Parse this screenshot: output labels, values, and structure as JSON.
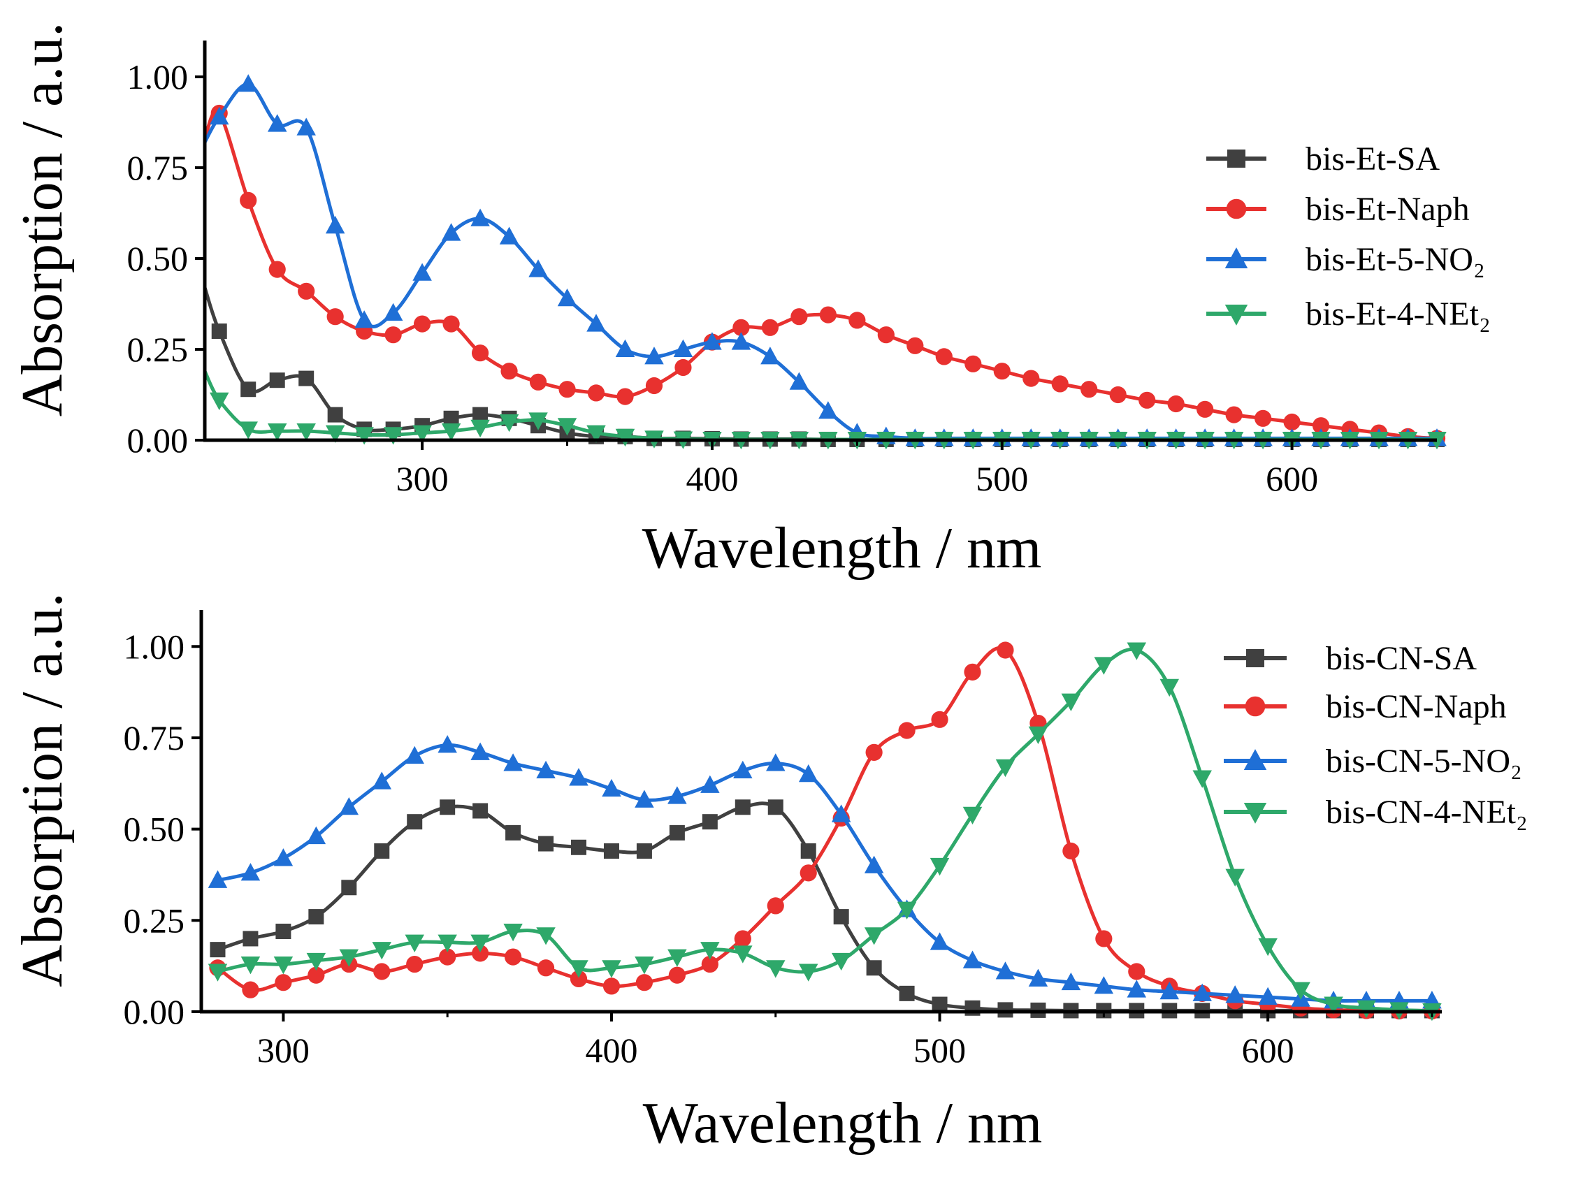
{
  "chart_data": [
    {
      "type": "line",
      "title": "",
      "xlabel": "Wavelength / nm",
      "ylabel": "Absorption / a.u.",
      "xlim": [
        225,
        650
      ],
      "ylim": [
        0,
        1.1
      ],
      "xticks": [
        300,
        400,
        500,
        600
      ],
      "yticks": [
        "0.00",
        "0.25",
        "0.50",
        "0.75",
        "1.00"
      ],
      "legend_position": "right",
      "grid": false,
      "series": [
        {
          "name": "bis-Et-SA",
          "color": "#404040",
          "marker": "square",
          "x": [
            225,
            230,
            240,
            250,
            260,
            270,
            280,
            290,
            300,
            310,
            320,
            330,
            340,
            350,
            360,
            370,
            380,
            390,
            400,
            410,
            420,
            430,
            440,
            450,
            460,
            470,
            480,
            490,
            500,
            510,
            520,
            530,
            540,
            550,
            560,
            570,
            580,
            590,
            600,
            610,
            620,
            630,
            640,
            650
          ],
          "y": [
            0.42,
            0.3,
            0.14,
            0.165,
            0.17,
            0.07,
            0.03,
            0.03,
            0.04,
            0.06,
            0.07,
            0.06,
            0.04,
            0.02,
            0.01,
            0.01,
            0.005,
            0.005,
            0.004,
            0.003,
            0.003,
            0.003,
            0.002,
            0.002,
            0.002,
            0.002,
            0.002,
            0.002,
            0.002,
            0.002,
            0.002,
            0.002,
            0.002,
            0.002,
            0.002,
            0.002,
            0.002,
            0.002,
            0.002,
            0.002,
            0.002,
            0.002,
            0.002,
            0.002
          ]
        },
        {
          "name": "bis-Et-Naph",
          "color": "#e8312f",
          "marker": "circle",
          "x": [
            225,
            230,
            240,
            250,
            260,
            270,
            280,
            290,
            300,
            310,
            320,
            330,
            340,
            350,
            360,
            370,
            380,
            390,
            400,
            410,
            420,
            430,
            440,
            450,
            460,
            470,
            480,
            490,
            500,
            510,
            520,
            530,
            540,
            550,
            560,
            570,
            580,
            590,
            600,
            610,
            620,
            630,
            640,
            650
          ],
          "y": [
            0.83,
            0.9,
            0.66,
            0.47,
            0.41,
            0.34,
            0.3,
            0.29,
            0.32,
            0.32,
            0.24,
            0.19,
            0.16,
            0.14,
            0.13,
            0.12,
            0.15,
            0.2,
            0.27,
            0.31,
            0.31,
            0.34,
            0.345,
            0.33,
            0.29,
            0.26,
            0.23,
            0.21,
            0.19,
            0.17,
            0.155,
            0.14,
            0.125,
            0.11,
            0.1,
            0.085,
            0.07,
            0.06,
            0.05,
            0.04,
            0.03,
            0.02,
            0.01,
            0.005
          ]
        },
        {
          "name": "bis-Et-5-NO₂",
          "color": "#1f6fd6",
          "marker": "triangle-up",
          "x": [
            225,
            230,
            240,
            250,
            260,
            270,
            280,
            290,
            300,
            310,
            320,
            330,
            340,
            350,
            360,
            370,
            380,
            390,
            400,
            410,
            420,
            430,
            440,
            450,
            460,
            470,
            480,
            490,
            500,
            510,
            520,
            530,
            540,
            550,
            560,
            570,
            580,
            590,
            600,
            610,
            620,
            630,
            640,
            650
          ],
          "y": [
            0.82,
            0.89,
            0.98,
            0.87,
            0.86,
            0.59,
            0.33,
            0.35,
            0.46,
            0.57,
            0.61,
            0.56,
            0.47,
            0.39,
            0.32,
            0.25,
            0.23,
            0.25,
            0.27,
            0.27,
            0.23,
            0.16,
            0.08,
            0.02,
            0.01,
            0.005,
            0.005,
            0.005,
            0.005,
            0.005,
            0.005,
            0.005,
            0.005,
            0.005,
            0.005,
            0.005,
            0.005,
            0.005,
            0.005,
            0.005,
            0.005,
            0.005,
            0.005,
            0.005
          ]
        },
        {
          "name": "bis-Et-4-NEt₂",
          "color": "#2ea86a",
          "marker": "triangle-down",
          "x": [
            225,
            230,
            240,
            250,
            260,
            270,
            280,
            290,
            300,
            310,
            320,
            330,
            340,
            350,
            360,
            370,
            380,
            390,
            400,
            410,
            420,
            430,
            440,
            450,
            460,
            470,
            480,
            490,
            500,
            510,
            520,
            530,
            540,
            550,
            560,
            570,
            580,
            590,
            600,
            610,
            620,
            630,
            640,
            650
          ],
          "y": [
            0.19,
            0.11,
            0.03,
            0.025,
            0.025,
            0.02,
            0.015,
            0.015,
            0.02,
            0.025,
            0.035,
            0.05,
            0.055,
            0.04,
            0.02,
            0.01,
            0.005,
            0.003,
            0.002,
            0.002,
            0.002,
            0.002,
            0.002,
            0.002,
            0.002,
            0.002,
            0.002,
            0.002,
            0.002,
            0.002,
            0.002,
            0.002,
            0.002,
            0.002,
            0.002,
            0.002,
            0.002,
            0.002,
            0.002,
            0.002,
            0.002,
            0.002,
            0.002,
            0.002
          ]
        }
      ]
    },
    {
      "type": "line",
      "title": "",
      "xlabel": "Wavelength / nm",
      "ylabel": "Absorption / a.u.",
      "xlim": [
        275,
        653
      ],
      "ylim": [
        0,
        1.1
      ],
      "xticks": [
        300,
        400,
        500,
        600
      ],
      "yticks": [
        "0.00",
        "0.25",
        "0.50",
        "0.75",
        "1.00"
      ],
      "legend_position": "right",
      "grid": false,
      "series": [
        {
          "name": "bis-CN-SA",
          "color": "#404040",
          "marker": "square",
          "x": [
            280,
            290,
            300,
            310,
            320,
            330,
            340,
            350,
            360,
            370,
            380,
            390,
            400,
            410,
            420,
            430,
            440,
            450,
            460,
            470,
            480,
            490,
            500,
            510,
            520,
            530,
            540,
            550,
            560,
            570,
            580,
            590,
            600,
            610,
            620,
            630,
            640,
            650
          ],
          "y": [
            0.17,
            0.2,
            0.22,
            0.26,
            0.34,
            0.44,
            0.52,
            0.56,
            0.55,
            0.49,
            0.46,
            0.45,
            0.44,
            0.44,
            0.49,
            0.52,
            0.56,
            0.56,
            0.44,
            0.26,
            0.12,
            0.05,
            0.02,
            0.01,
            0.005,
            0.004,
            0.003,
            0.003,
            0.003,
            0.003,
            0.003,
            0.003,
            0.003,
            0.003,
            0.003,
            0.003,
            0.003,
            0.003
          ]
        },
        {
          "name": "bis-CN-Naph",
          "color": "#e8312f",
          "marker": "circle",
          "x": [
            280,
            290,
            300,
            310,
            320,
            330,
            340,
            350,
            360,
            370,
            380,
            390,
            400,
            410,
            420,
            430,
            440,
            450,
            460,
            470,
            480,
            490,
            500,
            510,
            520,
            530,
            540,
            550,
            560,
            570,
            580,
            590,
            600,
            610,
            620,
            630,
            640,
            650
          ],
          "y": [
            0.12,
            0.06,
            0.08,
            0.1,
            0.13,
            0.11,
            0.13,
            0.15,
            0.16,
            0.15,
            0.12,
            0.09,
            0.07,
            0.08,
            0.1,
            0.13,
            0.2,
            0.29,
            0.38,
            0.53,
            0.71,
            0.77,
            0.8,
            0.93,
            0.99,
            0.79,
            0.44,
            0.2,
            0.11,
            0.07,
            0.05,
            0.03,
            0.02,
            0.01,
            0.005,
            0.003,
            0.002,
            0.002
          ]
        },
        {
          "name": "bis-CN-5-NO₂",
          "color": "#1f6fd6",
          "marker": "triangle-up",
          "x": [
            280,
            290,
            300,
            310,
            320,
            330,
            340,
            350,
            360,
            370,
            380,
            390,
            400,
            410,
            420,
            430,
            440,
            450,
            460,
            470,
            480,
            490,
            500,
            510,
            520,
            530,
            540,
            550,
            560,
            570,
            580,
            590,
            600,
            610,
            620,
            630,
            640,
            650
          ],
          "y": [
            0.36,
            0.38,
            0.42,
            0.48,
            0.56,
            0.63,
            0.7,
            0.73,
            0.71,
            0.68,
            0.66,
            0.64,
            0.61,
            0.58,
            0.59,
            0.62,
            0.66,
            0.68,
            0.65,
            0.54,
            0.4,
            0.28,
            0.19,
            0.14,
            0.11,
            0.09,
            0.08,
            0.07,
            0.06,
            0.055,
            0.05,
            0.045,
            0.04,
            0.035,
            0.03,
            0.03,
            0.03,
            0.03
          ]
        },
        {
          "name": "bis-CN-4-NEt₂",
          "color": "#2ea86a",
          "marker": "triangle-down",
          "x": [
            280,
            290,
            300,
            310,
            320,
            330,
            340,
            350,
            360,
            370,
            380,
            390,
            400,
            410,
            420,
            430,
            440,
            450,
            460,
            470,
            480,
            490,
            500,
            510,
            520,
            530,
            540,
            550,
            560,
            570,
            580,
            590,
            600,
            610,
            620,
            630,
            640,
            650
          ],
          "y": [
            0.11,
            0.13,
            0.13,
            0.14,
            0.15,
            0.17,
            0.19,
            0.19,
            0.19,
            0.22,
            0.21,
            0.12,
            0.12,
            0.13,
            0.15,
            0.17,
            0.16,
            0.12,
            0.11,
            0.14,
            0.21,
            0.28,
            0.4,
            0.54,
            0.67,
            0.76,
            0.85,
            0.95,
            0.99,
            0.89,
            0.64,
            0.37,
            0.18,
            0.06,
            0.02,
            0.01,
            0.005,
            0.002
          ]
        }
      ]
    }
  ]
}
